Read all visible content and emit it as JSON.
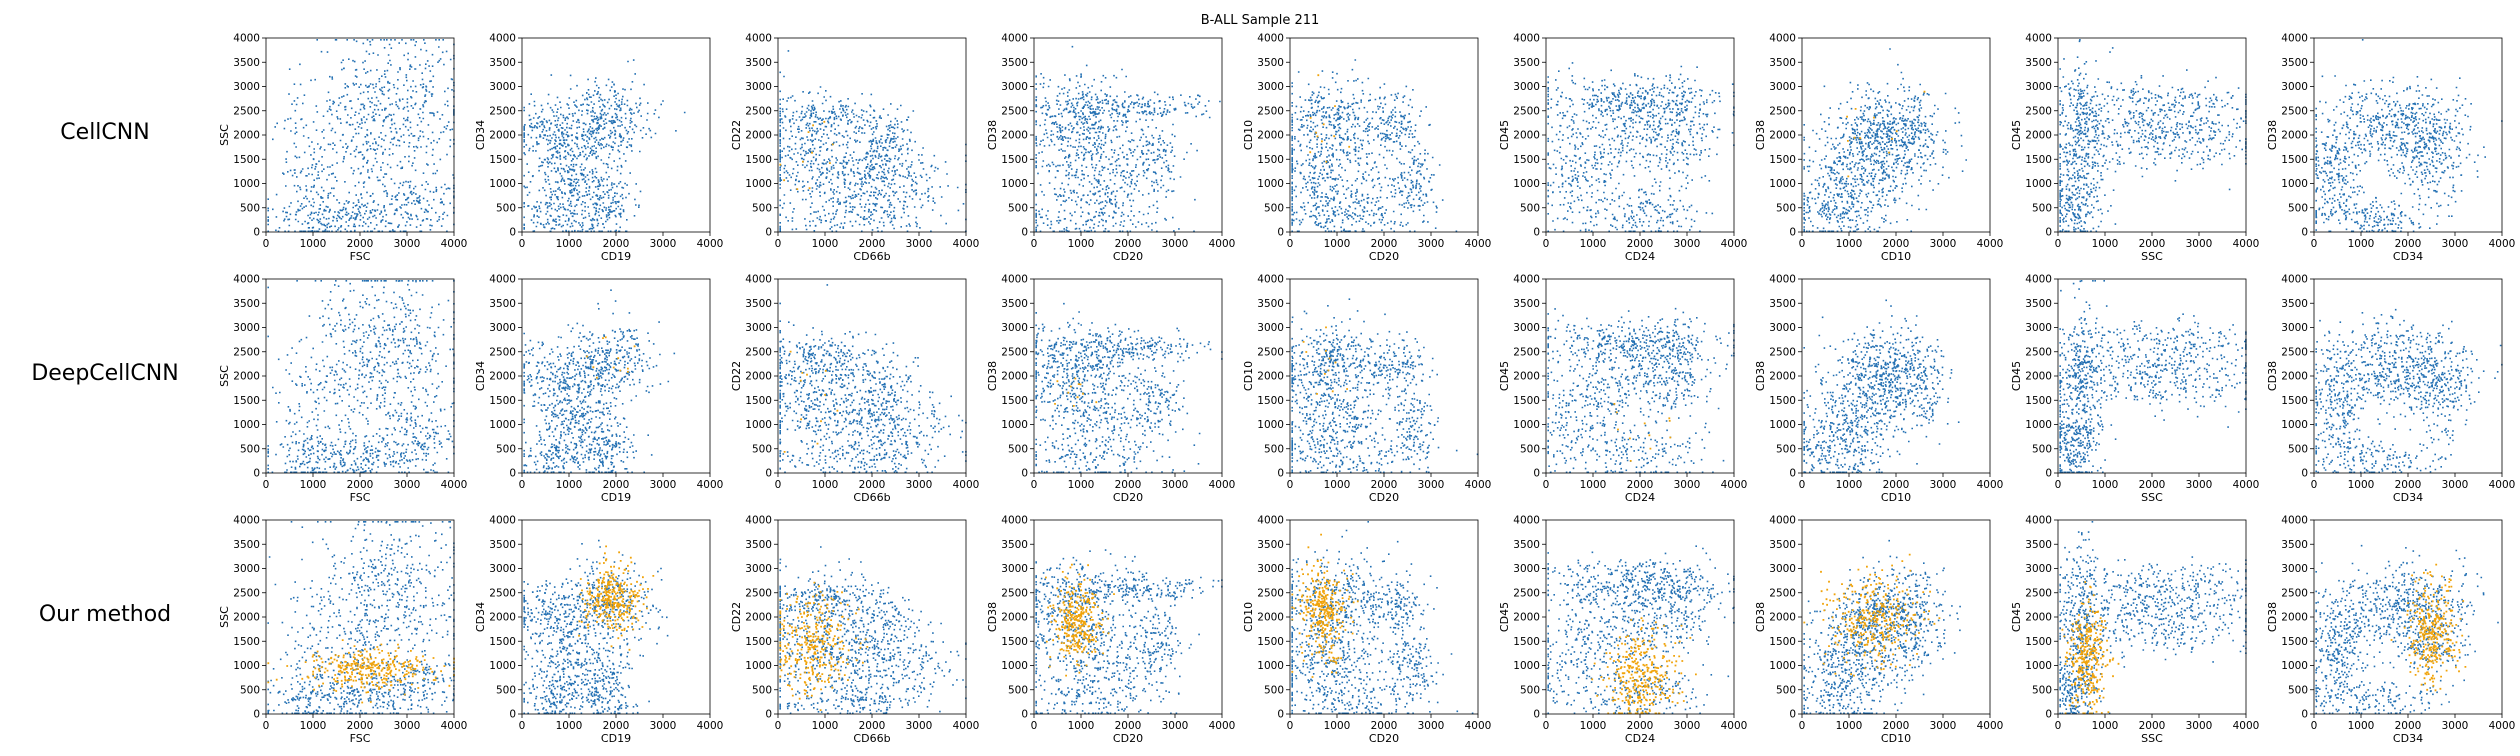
{
  "figure": {
    "title": "B-ALL Sample 211",
    "row_labels": [
      "CellCNN",
      "DeepCellCNN",
      "Our method"
    ]
  },
  "colors": {
    "blue": "#2370b3",
    "orange": "#f0a30a"
  },
  "chart_data": {
    "type": "scatter",
    "title": "B-ALL Sample 211",
    "xlim": [
      0,
      4000
    ],
    "ylim": [
      0,
      4000
    ],
    "ticks": [
      0,
      500,
      1000,
      1500,
      2000,
      2500,
      3000,
      3500,
      4000
    ],
    "xticks": [
      0,
      1000,
      2000,
      3000,
      4000
    ],
    "grid": false,
    "series": [
      {
        "role": "background",
        "color": "#2370b3"
      },
      {
        "role": "highlighted",
        "color": "#f0a30a"
      }
    ],
    "rows": [
      {
        "label": "CellCNN",
        "panels": [
          {
            "xlabel": "FSC",
            "ylabel": "SSC",
            "highlight": 0.0
          },
          {
            "xlabel": "CD19",
            "ylabel": "CD34",
            "highlight": 0.0
          },
          {
            "xlabel": "CD66b",
            "ylabel": "CD22",
            "highlight": 0.01
          },
          {
            "xlabel": "CD20",
            "ylabel": "CD38",
            "highlight": 0.0
          },
          {
            "xlabel": "CD20",
            "ylabel": "CD10",
            "highlight": 0.01
          },
          {
            "xlabel": "CD24",
            "ylabel": "CD45",
            "highlight": 0.0
          },
          {
            "xlabel": "CD10",
            "ylabel": "CD38",
            "highlight": 0.01
          },
          {
            "xlabel": "SSC",
            "ylabel": "CD45",
            "highlight": 0.0
          },
          {
            "xlabel": "CD34",
            "ylabel": "CD38",
            "highlight": 0.0
          }
        ]
      },
      {
        "label": "DeepCellCNN",
        "panels": [
          {
            "xlabel": "FSC",
            "ylabel": "SSC",
            "highlight": 0.0
          },
          {
            "xlabel": "CD19",
            "ylabel": "CD34",
            "highlight": 0.01
          },
          {
            "xlabel": "CD66b",
            "ylabel": "CD22",
            "highlight": 0.01
          },
          {
            "xlabel": "CD20",
            "ylabel": "CD38",
            "highlight": 0.01
          },
          {
            "xlabel": "CD20",
            "ylabel": "CD10",
            "highlight": 0.01
          },
          {
            "xlabel": "CD24",
            "ylabel": "CD45",
            "highlight": 0.01
          },
          {
            "xlabel": "CD10",
            "ylabel": "CD38",
            "highlight": 0.0
          },
          {
            "xlabel": "SSC",
            "ylabel": "CD45",
            "highlight": 0.0
          },
          {
            "xlabel": "CD34",
            "ylabel": "CD38",
            "highlight": 0.0
          }
        ]
      },
      {
        "label": "Our method",
        "panels": [
          {
            "xlabel": "FSC",
            "ylabel": "SSC",
            "highlight": 0.3
          },
          {
            "xlabel": "CD19",
            "ylabel": "CD34",
            "highlight": 0.3
          },
          {
            "xlabel": "CD66b",
            "ylabel": "CD22",
            "highlight": 0.3
          },
          {
            "xlabel": "CD20",
            "ylabel": "CD38",
            "highlight": 0.3
          },
          {
            "xlabel": "CD20",
            "ylabel": "CD10",
            "highlight": 0.3
          },
          {
            "xlabel": "CD24",
            "ylabel": "CD45",
            "highlight": 0.3
          },
          {
            "xlabel": "CD10",
            "ylabel": "CD38",
            "highlight": 0.3
          },
          {
            "xlabel": "SSC",
            "ylabel": "CD45",
            "highlight": 0.3
          },
          {
            "xlabel": "CD34",
            "ylabel": "CD38",
            "highlight": 0.3
          }
        ]
      }
    ]
  }
}
